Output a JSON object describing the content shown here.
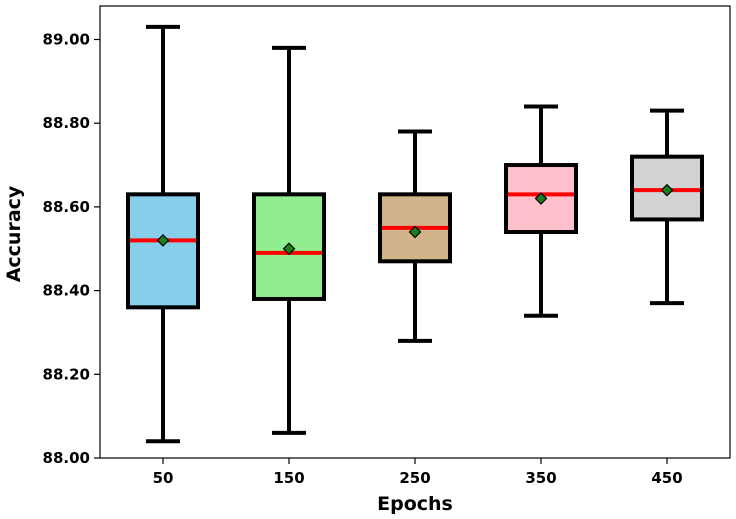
{
  "chart_data": {
    "type": "box",
    "xlabel": "Epochs",
    "ylabel": "Accuracy",
    "ylim": [
      88.0,
      89.08
    ],
    "yticks": [
      "88.00",
      "88.20",
      "88.40",
      "88.60",
      "88.80",
      "89.00"
    ],
    "ytick_values": [
      88.0,
      88.2,
      88.4,
      88.6,
      88.8,
      89.0
    ],
    "grid": false,
    "legend": "none",
    "median_color": "#ff0000",
    "mean_marker_color": "#1a7f1a",
    "boxes": [
      {
        "category": "50",
        "min": 88.04,
        "q1": 88.36,
        "median": 88.52,
        "mean": 88.52,
        "q3": 88.63,
        "max": 89.03,
        "color": "#87ceeb"
      },
      {
        "category": "150",
        "min": 88.06,
        "q1": 88.38,
        "median": 88.49,
        "mean": 88.5,
        "q3": 88.63,
        "max": 88.98,
        "color": "#90ee90"
      },
      {
        "category": "250",
        "min": 88.28,
        "q1": 88.47,
        "median": 88.55,
        "mean": 88.54,
        "q3": 88.63,
        "max": 88.78,
        "color": "#d2b48c"
      },
      {
        "category": "350",
        "min": 88.34,
        "q1": 88.54,
        "median": 88.63,
        "mean": 88.62,
        "q3": 88.7,
        "max": 88.84,
        "color": "#ffc0cb"
      },
      {
        "category": "450",
        "min": 88.37,
        "q1": 88.57,
        "median": 88.64,
        "mean": 88.64,
        "q3": 88.72,
        "max": 88.83,
        "color": "#d3d3d3"
      }
    ]
  }
}
